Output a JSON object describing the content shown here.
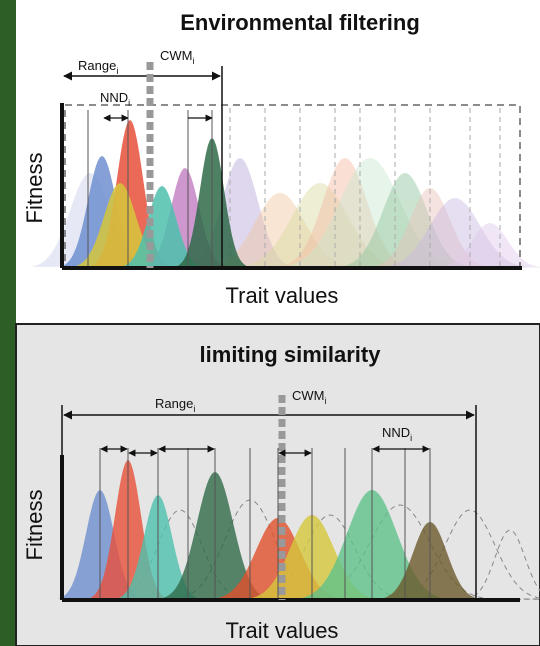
{
  "panels": [
    {
      "title": "Environmental filtering",
      "range_label": "Range",
      "range_subscript": "i",
      "cwm_label": "CWM",
      "cwm_subscript": "i",
      "nnd_label": "NND",
      "nnd_subscript": "i",
      "y_axis_label": "Fitness",
      "x_axis_label": "Trait values"
    },
    {
      "title": "limiting similarity",
      "range_label": "Range",
      "range_subscript": "i",
      "cwm_label": "CWM",
      "cwm_subscript": "i",
      "nnd_label": "NND",
      "nnd_subscript": "i",
      "y_axis_label": "Fitness",
      "x_axis_label": "Trait values"
    }
  ]
}
